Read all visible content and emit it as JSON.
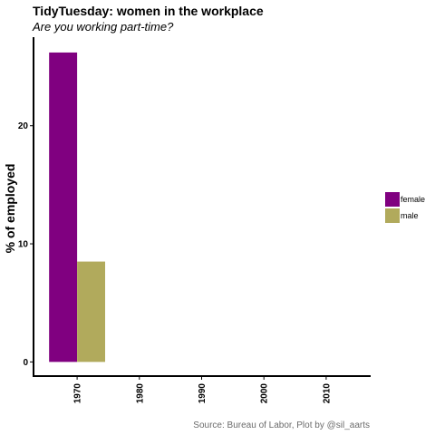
{
  "chart_data": {
    "type": "bar",
    "title": "TidyTuesday: women in the workplace",
    "subtitle": "Are you working part-time?",
    "xlabel": "",
    "ylabel": "% of employed",
    "categories": [
      "1970",
      "1980",
      "1990",
      "2000",
      "2010"
    ],
    "series": [
      {
        "name": "female",
        "color": "#800080",
        "values": [
          26.2,
          null,
          null,
          null,
          null
        ]
      },
      {
        "name": "male",
        "color": "#b1aa5c",
        "values": [
          8.5,
          null,
          null,
          null,
          null
        ]
      }
    ],
    "y_ticks": [
      0,
      10,
      20
    ],
    "ylim": [
      -1.2,
      27.5
    ],
    "xlim": [
      1963,
      2017
    ],
    "grid": false,
    "legend_position": "right",
    "caption": "Source: Bureau of Labor,  Plot by @sil_aarts"
  }
}
